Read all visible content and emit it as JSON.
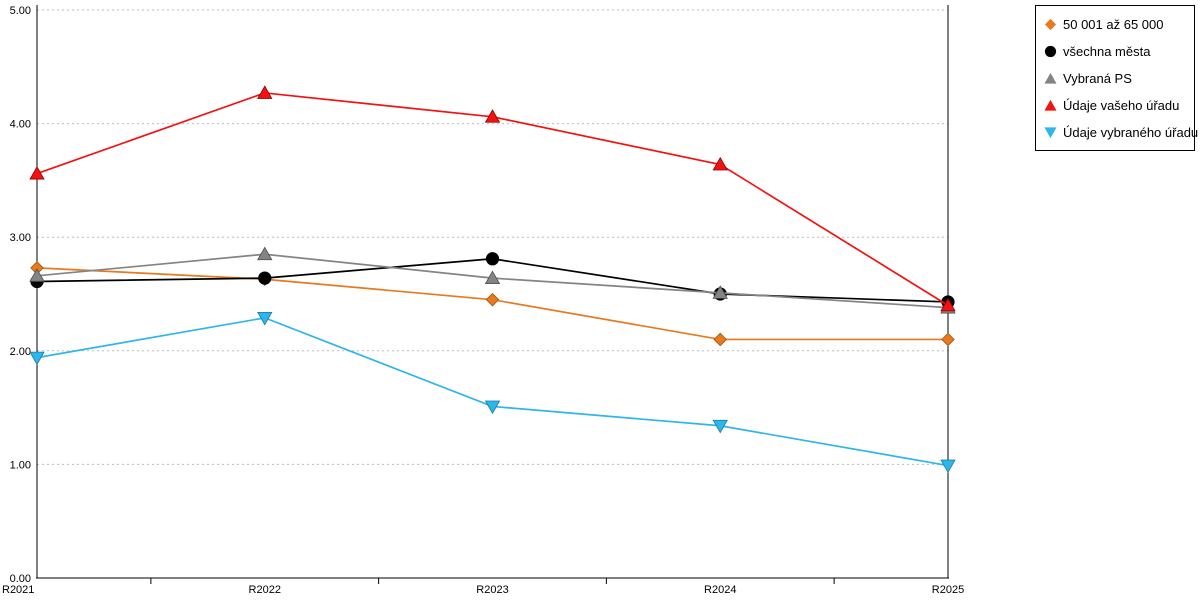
{
  "chart_data": {
    "type": "line",
    "title": "",
    "xlabel": "",
    "ylabel": "",
    "categories": [
      "R2021",
      "R2022",
      "R2023",
      "R2024",
      "R2025"
    ],
    "series": [
      {
        "name": "50 001 až 65 000",
        "marker": "diamond",
        "color": "#E8791E",
        "marker_stroke": "#9C5708",
        "values": [
          2.73,
          2.63,
          2.45,
          2.1,
          2.1
        ]
      },
      {
        "name": "všechna města",
        "marker": "circle",
        "color": "#000000",
        "marker_stroke": "#000000",
        "values": [
          2.61,
          2.64,
          2.81,
          2.5,
          2.43
        ]
      },
      {
        "name": "Vybraná PS",
        "marker": "triangle-up",
        "color": "#848484",
        "marker_stroke": "#4D4D4D",
        "values": [
          2.66,
          2.85,
          2.64,
          2.51,
          2.38
        ]
      },
      {
        "name": "Údaje vašeho úřadu",
        "marker": "triangle-up",
        "color": "#F21212",
        "marker_stroke": "#8F0000",
        "values": [
          3.56,
          4.27,
          4.06,
          3.64,
          2.4
        ]
      },
      {
        "name": "Údaje vybraného úřadu",
        "marker": "triangle-down",
        "color": "#2EB6EA",
        "marker_stroke": "#1779A8",
        "values": [
          1.94,
          2.29,
          1.51,
          1.34,
          0.99
        ]
      }
    ],
    "ylim": [
      0,
      5
    ],
    "y_ticks": [
      "0.00",
      "1.00",
      "2.00",
      "3.00",
      "4.00",
      "5.00"
    ],
    "grid": true,
    "grid_style": "dotted",
    "legend_position": "top-right"
  }
}
